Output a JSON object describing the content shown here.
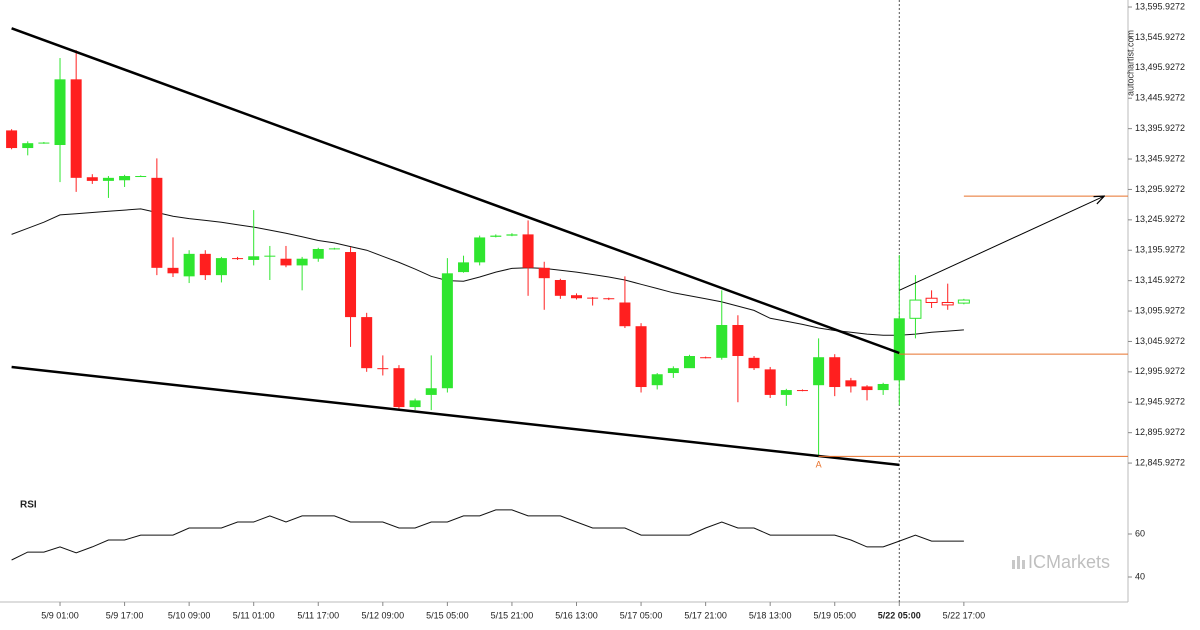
{
  "chart_data": {
    "type": "candlestick",
    "categories": [
      null,
      null,
      null,
      "5/9 01:00",
      null,
      null,
      null,
      "5/9 17:00",
      null,
      null,
      null,
      "5/10 09:00",
      null,
      null,
      null,
      "5/11 01:00",
      null,
      null,
      null,
      "5/11 17:00",
      null,
      null,
      null,
      "5/12 09:00",
      null,
      null,
      null,
      "5/15 05:00",
      null,
      null,
      null,
      "5/15 21:00",
      null,
      null,
      null,
      "5/16 13:00",
      null,
      null,
      null,
      "5/17 05:00",
      null,
      null,
      null,
      "5/17 21:00",
      null,
      null,
      null,
      "5/18 13:00",
      null,
      null,
      null,
      "5/19 05:00",
      null,
      null,
      null,
      "5/22 05:00",
      null,
      null,
      null,
      "5/22 17:00"
    ],
    "open": [
      13393,
      13364,
      13372,
      13369,
      13477,
      13316,
      13310,
      13311,
      13318,
      13315,
      13167,
      13153,
      13190,
      13155,
      13183,
      13180,
      13186,
      13182,
      13171,
      13182,
      13198,
      13193,
      13086,
      13002,
      13002,
      12938,
      12958,
      12969,
      13160,
      13176,
      13218,
      13220,
      13222,
      13167,
      13147,
      13122,
      13118,
      13117,
      13110,
      13071,
      12974,
      12994,
      13002,
      13020,
      13019,
      13073,
      13019,
      13000,
      12958,
      12966,
      12974,
      13020,
      12982,
      12972,
      12966,
      12982,
      13084,
      13117,
      13110,
      13109
    ],
    "high": [
      13395,
      13375,
      13374,
      13512,
      13525,
      13321,
      13318,
      13320,
      13319,
      13347,
      13217,
      13196,
      13196,
      13185,
      13185,
      13262,
      13203,
      13203,
      13185,
      13200,
      13200,
      13201,
      13093,
      13023,
      13007,
      12952,
      13023,
      13183,
      13187,
      13220,
      13222,
      13224,
      13245,
      13177,
      13149,
      13125,
      13119,
      13118,
      13153,
      13076,
      12994,
      13005,
      13024,
      13021,
      13130,
      13089,
      13022,
      13004,
      12968,
      12967,
      13051,
      13025,
      12986,
      12974,
      12978,
      13188,
      13155,
      13130,
      13141,
      13116
    ],
    "low": [
      13362,
      13352,
      13371,
      13308,
      13292,
      13305,
      13282,
      13300,
      13317,
      13155,
      13152,
      13142,
      13147,
      13143,
      13180,
      13171,
      13147,
      13168,
      13130,
      13177,
      13197,
      13037,
      12996,
      12990,
      12933,
      12933,
      12933,
      12962,
      13159,
      13171,
      13217,
      13219,
      13121,
      13098,
      13116,
      13115,
      13105,
      13114,
      13068,
      12962,
      12967,
      12986,
      13003,
      13018,
      13016,
      12946,
      12999,
      12953,
      12940,
      12964,
      12857,
      12956,
      12962,
      12949,
      12958,
      12941,
      13051,
      13101,
      13098,
      13107
    ],
    "close": [
      13364,
      13372,
      13373,
      13477,
      13315,
      13310,
      13315,
      13318,
      13318,
      13167,
      13158,
      13190,
      13155,
      13183,
      13182,
      13186,
      13187,
      13171,
      13182,
      13198,
      13199,
      13086,
      13002,
      13001,
      12938,
      12949,
      12969,
      13158,
      13176,
      13217,
      13220,
      13222,
      13167,
      13150,
      13121,
      13117,
      13117,
      13116,
      13071,
      12971,
      12992,
      13002,
      13022,
      13019,
      13073,
      13022,
      13002,
      12958,
      12966,
      12965,
      13020,
      12971,
      12972,
      12966,
      12976,
      13084,
      13114,
      13110,
      13106,
      13114
    ],
    "hollow_from": 56,
    "up_color": "#2fe52f",
    "down_color": "#ff1f1f",
    "ma": [
      13222,
      13232,
      13242,
      13254,
      13256,
      13258,
      13260,
      13262,
      13264,
      13258,
      13252,
      13248,
      13245,
      13242,
      13238,
      13234,
      13229,
      13224,
      13218,
      13212,
      13208,
      13202,
      13196,
      13186,
      13176,
      13165,
      13153,
      13146,
      13145,
      13152,
      13160,
      13166,
      13167,
      13166,
      13163,
      13160,
      13156,
      13152,
      13147,
      13140,
      13133,
      13126,
      13121,
      13116,
      13111,
      13104,
      13097,
      13084,
      13079,
      13074,
      13068,
      13064,
      13061,
      13058,
      13056,
      13056,
      13058,
      13061,
      13063,
      13065
    ],
    "trendlines": [
      {
        "x": [
          0,
          55
        ],
        "y": [
          13561,
          13027
        ]
      },
      {
        "x": [
          0,
          55
        ],
        "y": [
          13004,
          12843
        ]
      }
    ],
    "arrow": {
      "x": [
        55,
        67.7
      ],
      "y": [
        13130,
        13285
      ]
    },
    "levels": [
      {
        "value": 13285,
        "x_start": 59
      },
      {
        "value": 13025,
        "x_start": 55
      },
      {
        "value": 12857,
        "x_start": 50
      }
    ],
    "level_color": "#e8712a",
    "annotation": {
      "text": "A",
      "x": 50
    },
    "vline_x": 55,
    "ylim": [
      12800,
      13605
    ],
    "yticks": [
      {
        "value": 13595.9272,
        "label": "13,595.9272"
      },
      {
        "value": 13545.9272,
        "label": "13,545.9272"
      },
      {
        "value": 13495.9272,
        "label": "13,495.9272"
      },
      {
        "value": 13445.9272,
        "label": "13,445.9272"
      },
      {
        "value": 13395.9272,
        "label": "13,395.9272"
      },
      {
        "value": 13345.9272,
        "label": "13,345.9272"
      },
      {
        "value": 13295.9272,
        "label": "13,295.9272"
      },
      {
        "value": 13245.9272,
        "label": "13,245.9272"
      },
      {
        "value": 13195.9272,
        "label": "13,195.9272"
      },
      {
        "value": 13145.9272,
        "label": "13,145.9272"
      },
      {
        "value": 13095.9272,
        "label": "13,095.9272"
      },
      {
        "value": 13045.9272,
        "label": "13,045.9272"
      },
      {
        "value": 12995.9272,
        "label": "12,995.9272"
      },
      {
        "value": 12945.9272,
        "label": "12,945.9272"
      },
      {
        "value": 12895.9272,
        "label": "12,895.9272"
      },
      {
        "value": 12845.9272,
        "label": "12,845.9272"
      }
    ],
    "rsi": {
      "title": "RSI",
      "values": [
        47.9,
        51.6,
        51.6,
        54.0,
        51.2,
        54.0,
        57.2,
        57.2,
        59.5,
        59.5,
        59.5,
        62.8,
        62.8,
        62.8,
        65.6,
        65.6,
        68.4,
        65.6,
        68.4,
        68.4,
        68.4,
        65.6,
        65.6,
        65.6,
        62.8,
        62.8,
        65.6,
        65.6,
        68.4,
        68.4,
        71.2,
        71.2,
        68.4,
        68.4,
        68.4,
        65.6,
        62.8,
        62.8,
        62.8,
        59.5,
        59.5,
        59.5,
        59.5,
        62.8,
        65.6,
        62.8,
        62.8,
        59.5,
        59.5,
        59.5,
        59.5,
        59.5,
        57.2,
        54.0,
        54.0,
        56.7,
        59.5,
        56.7,
        56.7,
        56.7
      ],
      "ylim": [
        30,
        76
      ],
      "yticks": [
        60,
        40
      ]
    },
    "watermark": "autochartist.com",
    "brand": "ICMarkets"
  }
}
